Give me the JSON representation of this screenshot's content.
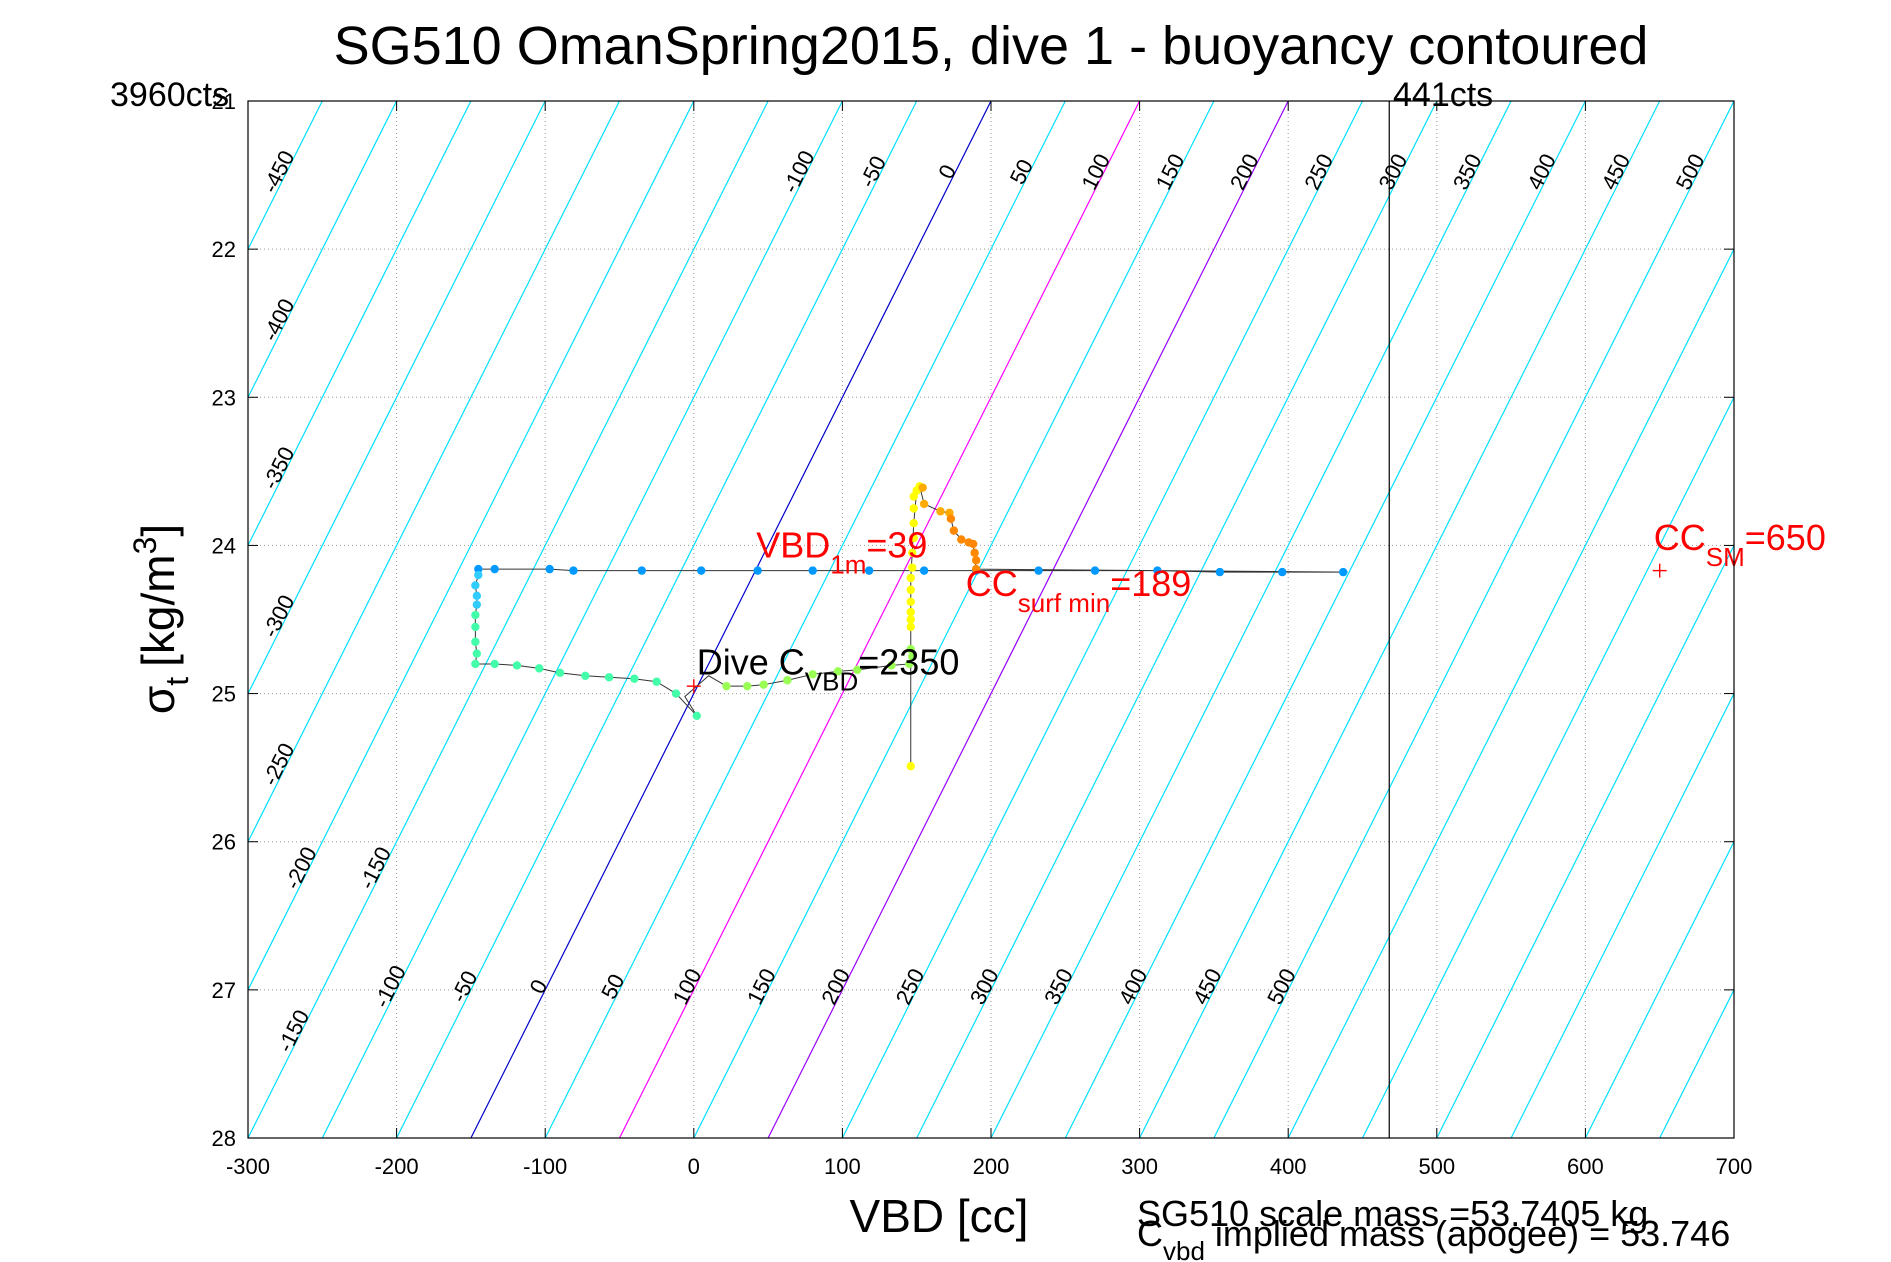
{
  "chart_data": {
    "type": "scatter",
    "title": "SG510 OmanSpring2015, dive 1 - buoyancy contoured",
    "xlabel": "VBD [cc]",
    "ylabel_main": "σ",
    "ylabel_sub": "t",
    "ylabel_unit": "[kg/m",
    "ylabel_sup": "3",
    "ylabel_end": "]",
    "xlim": [
      -300,
      700
    ],
    "ylim": [
      21,
      28
    ],
    "y_reversed": true,
    "grid": true,
    "x_ticks": [
      {
        "v": -300,
        "label": "-300"
      },
      {
        "v": -200,
        "label": "-200"
      },
      {
        "v": -100,
        "label": "-100"
      },
      {
        "v": 0,
        "label": "0"
      },
      {
        "v": 100,
        "label": "100"
      },
      {
        "v": 200,
        "label": "200"
      },
      {
        "v": 300,
        "label": "300"
      },
      {
        "v": 400,
        "label": "400"
      },
      {
        "v": 500,
        "label": "500"
      },
      {
        "v": 600,
        "label": "600"
      },
      {
        "v": 700,
        "label": "700"
      }
    ],
    "y_ticks": [
      {
        "v": 21,
        "label": "21"
      },
      {
        "v": 22,
        "label": "22"
      },
      {
        "v": 23,
        "label": "23"
      },
      {
        "v": 24,
        "label": "24"
      },
      {
        "v": 25,
        "label": "25"
      },
      {
        "v": 26,
        "label": "26"
      },
      {
        "v": 27,
        "label": "27"
      },
      {
        "v": 28,
        "label": "28"
      }
    ],
    "contours": {
      "sigma0": 25,
      "slope_per_unit": 0.02,
      "top_labels": [
        {
          "v": -450,
          "label": "-450"
        },
        {
          "v": -400,
          "label": "-400"
        },
        {
          "v": -350,
          "label": "-350"
        },
        {
          "v": -300,
          "label": "-300"
        },
        {
          "v": -250,
          "label": "-250"
        },
        {
          "v": -200,
          "label": "-200"
        },
        {
          "v": -150,
          "label": "-150"
        },
        {
          "v": -100,
          "label": "-100"
        },
        {
          "v": -50,
          "label": "-50"
        },
        {
          "v": 0,
          "label": "0"
        },
        {
          "v": 50,
          "label": "50"
        },
        {
          "v": 100,
          "label": "100"
        },
        {
          "v": 150,
          "label": "150"
        },
        {
          "v": 200,
          "label": "200"
        },
        {
          "v": 250,
          "label": "250"
        },
        {
          "v": 300,
          "label": "300"
        },
        {
          "v": 350,
          "label": "350"
        },
        {
          "v": 400,
          "label": "400"
        },
        {
          "v": 450,
          "label": "450"
        },
        {
          "v": 500,
          "label": "500"
        }
      ],
      "bottom_labels": [
        {
          "v": -150,
          "label": "-150"
        },
        {
          "v": -100,
          "label": "-100"
        },
        {
          "v": -50,
          "label": "-50"
        },
        {
          "v": 0,
          "label": "0"
        },
        {
          "v": 50,
          "label": "50"
        },
        {
          "v": 100,
          "label": "100"
        },
        {
          "v": 150,
          "label": "150"
        },
        {
          "v": 200,
          "label": "200"
        },
        {
          "v": 250,
          "label": "250"
        },
        {
          "v": 300,
          "label": "300"
        },
        {
          "v": 350,
          "label": "350"
        },
        {
          "v": 400,
          "label": "400"
        },
        {
          "v": 450,
          "label": "450"
        },
        {
          "v": 500,
          "label": "500"
        }
      ]
    },
    "contour_colors": {
      "default": "#00e0ff",
      "zero": "#0000cc",
      "hundred": "#ff00ff",
      "two_hundred": "#9900ff"
    },
    "right_limit_line": {
      "x": 468,
      "color": "#000000"
    },
    "corner_labels": {
      "left": "3960cts",
      "right": "441cts"
    },
    "series": [
      {
        "color": "#0099ff",
        "points": [
          [
            437,
            24.18
          ],
          [
            396,
            24.18
          ],
          [
            354,
            24.18
          ],
          [
            312,
            24.17
          ],
          [
            270,
            24.17
          ],
          [
            232,
            24.17
          ],
          [
            190,
            24.17
          ],
          [
            155,
            24.17
          ],
          [
            118,
            24.17
          ],
          [
            80,
            24.17
          ],
          [
            43,
            24.17
          ],
          [
            5,
            24.17
          ],
          [
            -35,
            24.17
          ],
          [
            -81,
            24.17
          ],
          [
            -97,
            24.16
          ],
          [
            -134,
            24.16
          ],
          [
            -145,
            24.16
          ]
        ]
      },
      {
        "color": "#33ccff",
        "points": [
          [
            -145,
            24.2
          ],
          [
            -147,
            24.27
          ],
          [
            -146,
            24.34
          ],
          [
            -146,
            24.4
          ]
        ]
      },
      {
        "color": "#44ffaa",
        "points": [
          [
            -147,
            24.47
          ],
          [
            -147,
            24.55
          ],
          [
            -147,
            24.65
          ],
          [
            -146,
            24.73
          ],
          [
            -147,
            24.8
          ],
          [
            -134,
            24.8
          ],
          [
            -119,
            24.81
          ],
          [
            -104,
            24.83
          ],
          [
            -90,
            24.86
          ],
          [
            -73,
            24.88
          ],
          [
            -57,
            24.89
          ],
          [
            -40,
            24.9
          ],
          [
            -25,
            24.92
          ],
          [
            -12,
            25.0
          ],
          [
            2,
            25.15
          ]
        ]
      },
      {
        "color": "#99ff55",
        "points": [
          [
            22,
            24.95
          ],
          [
            36,
            24.95
          ],
          [
            47,
            24.94
          ],
          [
            63,
            24.91
          ],
          [
            80,
            24.87
          ],
          [
            97,
            24.85
          ],
          [
            110,
            24.84
          ],
          [
            133,
            24.81
          ],
          [
            145,
            24.8
          ],
          [
            147,
            24.75
          ],
          [
            146,
            24.7
          ]
        ]
      },
      {
        "color": "#ffff00",
        "points": [
          [
            146,
            25.49
          ],
          [
            146,
            24.55
          ],
          [
            146,
            24.5
          ],
          [
            146,
            24.45
          ],
          [
            146,
            24.38
          ],
          [
            146,
            24.3
          ],
          [
            146,
            24.22
          ],
          [
            147,
            24.15
          ],
          [
            147,
            24.05
          ],
          [
            148,
            23.95
          ],
          [
            148,
            23.85
          ],
          [
            148,
            23.75
          ],
          [
            150,
            23.63
          ],
          [
            152,
            23.6
          ],
          [
            148,
            23.67
          ]
        ]
      },
      {
        "color": "#ffaa00",
        "points": [
          [
            154,
            23.61
          ],
          [
            155,
            23.72
          ],
          [
            166,
            23.77
          ],
          [
            172,
            23.78
          ]
        ]
      },
      {
        "color": "#ff8800",
        "points": [
          [
            173,
            23.82
          ],
          [
            175,
            23.9
          ],
          [
            180,
            23.96
          ],
          [
            185,
            23.98
          ],
          [
            188,
            23.99
          ],
          [
            189,
            24.05
          ],
          [
            190,
            24.1
          ],
          [
            190,
            24.16
          ]
        ]
      }
    ],
    "trace_lines": [
      [
        [
          437,
          24.18
        ],
        [
          396,
          24.18
        ],
        [
          354,
          24.18
        ],
        [
          312,
          24.17
        ],
        [
          270,
          24.17
        ],
        [
          232,
          24.17
        ],
        [
          190,
          24.17
        ],
        [
          155,
          24.17
        ],
        [
          118,
          24.17
        ],
        [
          80,
          24.17
        ],
        [
          43,
          24.17
        ],
        [
          5,
          24.17
        ],
        [
          -35,
          24.17
        ],
        [
          -81,
          24.17
        ],
        [
          -97,
          24.16
        ],
        [
          -134,
          24.16
        ],
        [
          -145,
          24.16
        ],
        [
          -145,
          24.2
        ],
        [
          -147,
          24.27
        ],
        [
          -146,
          24.34
        ],
        [
          -146,
          24.4
        ],
        [
          -147,
          24.47
        ],
        [
          -147,
          24.55
        ],
        [
          -147,
          24.65
        ],
        [
          -146,
          24.73
        ],
        [
          -147,
          24.8
        ],
        [
          -134,
          24.8
        ],
        [
          -119,
          24.81
        ],
        [
          -104,
          24.83
        ],
        [
          -90,
          24.86
        ],
        [
          -73,
          24.88
        ],
        [
          -57,
          24.89
        ],
        [
          -40,
          24.9
        ],
        [
          -25,
          24.92
        ],
        [
          -12,
          25.0
        ],
        [
          2,
          25.15
        ],
        [
          -6,
          25.02
        ],
        [
          10,
          24.88
        ],
        [
          22,
          24.95
        ],
        [
          36,
          24.95
        ],
        [
          47,
          24.94
        ],
        [
          63,
          24.91
        ],
        [
          80,
          24.87
        ],
        [
          97,
          24.85
        ],
        [
          110,
          24.84
        ],
        [
          133,
          24.81
        ],
        [
          145,
          24.8
        ],
        [
          147,
          24.75
        ],
        [
          146,
          24.7
        ],
        [
          146,
          24.55
        ],
        [
          146,
          24.38
        ],
        [
          146,
          24.22
        ],
        [
          147,
          24.05
        ],
        [
          148,
          23.85
        ],
        [
          150,
          23.63
        ],
        [
          152,
          23.6
        ],
        [
          155,
          23.72
        ],
        [
          166,
          23.77
        ],
        [
          172,
          23.78
        ],
        [
          175,
          23.9
        ],
        [
          180,
          23.96
        ],
        [
          188,
          23.99
        ],
        [
          190,
          24.16
        ],
        [
          440,
          24.18
        ]
      ],
      [
        [
          146,
          24.8
        ],
        [
          146,
          25.49
        ]
      ]
    ],
    "markers": [
      {
        "x": 0,
        "y": 24.95,
        "color": "#ff0000"
      },
      {
        "x": 650,
        "y": 24.17,
        "color": "#ff0000"
      }
    ],
    "annotations": [
      {
        "x": 42,
        "y": 24.08,
        "color": "#ff0000",
        "main": "VBD",
        "sub": "1m",
        "rest": "=39"
      },
      {
        "x": 183,
        "y": 24.34,
        "color": "#ff0000",
        "main": "CC",
        "sub": "surf min",
        "rest": "=189"
      },
      {
        "x": 2,
        "y": 24.87,
        "color": "#000000",
        "main": "Dive C",
        "sub": "VBD",
        "rest": "=2350"
      },
      {
        "x": 646,
        "y": 24.03,
        "color": "#ff0000",
        "main": "CC",
        "sub": "SM",
        "rest": "=650"
      }
    ],
    "footer": {
      "line1": "SG510 scale mass =53.7405 kg",
      "line2_main": "C",
      "line2_sub": "vbd",
      "line2_rest": " implied mass (apogee) = 53.746"
    }
  }
}
